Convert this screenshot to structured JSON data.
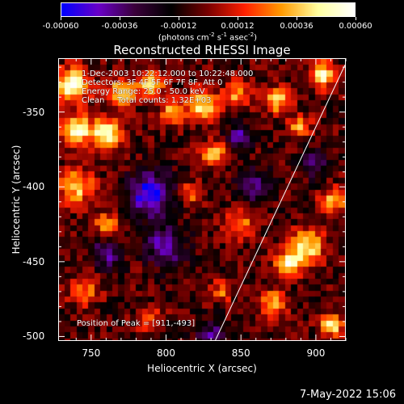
{
  "colorbar": {
    "ticks": [
      "-0.00060",
      "-0.00036",
      "-0.00012",
      "0.00012",
      "0.00036",
      "0.00060"
    ],
    "units_main": "(photons cm",
    "units_exp1": "-2",
    "units_mid1": " s",
    "units_exp2": "-1",
    "units_mid2": " asec",
    "units_exp3": "-2",
    "units_end": ")",
    "colors": [
      "#0000ff",
      "#6a00c8",
      "#3a003a",
      "#000000",
      "#7a0000",
      "#ff2000",
      "#ff9a00",
      "#ffffa0",
      "#ffffff"
    ]
  },
  "annotations": {
    "time": "1-Dec-2003 10:22:12.000 to 10:22:48.000",
    "detectors": "Detectors: 3F 4F 5F 6F 7F 8F, Att 0",
    "energy": "Energy Range: 25.0 - 50.0 keV",
    "clean": "Clean     Total counts: 1.32E+03",
    "peak": "Position of Peak = [911,-493]"
  },
  "timestamp": "7-May-2022 15:06",
  "chart_data": {
    "type": "heatmap",
    "title": "Reconstructed RHESSI Image",
    "xlabel": "Heliocentric X (arcsec)",
    "ylabel": "Heliocentric Y (arcsec)",
    "xlim": [
      728,
      920
    ],
    "ylim": [
      -503,
      -314
    ],
    "xticks": [
      "750",
      "800",
      "850",
      "900"
    ],
    "xtick_values": [
      750,
      800,
      850,
      900
    ],
    "yticks": [
      "-350",
      "-400",
      "-450",
      "-500"
    ],
    "ytick_values": [
      -350,
      -400,
      -450,
      -500
    ],
    "colorbar_range": [
      -0.0006,
      0.0006
    ],
    "grid_step_arcsec": 4,
    "blobs": [
      {
        "x": 737,
        "y": -332,
        "sigma": 8,
        "value": 0.0006
      },
      {
        "x": 740,
        "y": -362,
        "sigma": 7,
        "value": 0.00058
      },
      {
        "x": 760,
        "y": -364,
        "sigma": 7,
        "value": 0.0006
      },
      {
        "x": 770,
        "y": -337,
        "sigma": 7,
        "value": 0.00045
      },
      {
        "x": 790,
        "y": -330,
        "sigma": 6,
        "value": 0.0005
      },
      {
        "x": 805,
        "y": -350,
        "sigma": 6,
        "value": 0.0004
      },
      {
        "x": 825,
        "y": -345,
        "sigma": 7,
        "value": 0.0005
      },
      {
        "x": 848,
        "y": -338,
        "sigma": 6,
        "value": 0.00035
      },
      {
        "x": 875,
        "y": -342,
        "sigma": 6,
        "value": 0.00045
      },
      {
        "x": 905,
        "y": -325,
        "sigma": 6,
        "value": 0.00055
      },
      {
        "x": 890,
        "y": -360,
        "sigma": 5,
        "value": 0.0004
      },
      {
        "x": 832,
        "y": -378,
        "sigma": 6,
        "value": 0.0004
      },
      {
        "x": 740,
        "y": -400,
        "sigma": 8,
        "value": 0.00045
      },
      {
        "x": 760,
        "y": -426,
        "sigma": 6,
        "value": 0.00035
      },
      {
        "x": 816,
        "y": -405,
        "sigma": 5,
        "value": 0.0003
      },
      {
        "x": 850,
        "y": -425,
        "sigma": 7,
        "value": 0.00035
      },
      {
        "x": 912,
        "y": -410,
        "sigma": 6,
        "value": 0.0004
      },
      {
        "x": 895,
        "y": -440,
        "sigma": 8,
        "value": 0.0005
      },
      {
        "x": 882,
        "y": -452,
        "sigma": 6,
        "value": 0.0006
      },
      {
        "x": 872,
        "y": -478,
        "sigma": 6,
        "value": 0.0004
      },
      {
        "x": 911,
        "y": -493,
        "sigma": 5,
        "value": 0.0006
      },
      {
        "x": 745,
        "y": -470,
        "sigma": 7,
        "value": 0.0003
      },
      {
        "x": 790,
        "y": -490,
        "sigma": 6,
        "value": 0.00025
      },
      {
        "x": 838,
        "y": -470,
        "sigma": 5,
        "value": 0.0003
      },
      {
        "x": 790,
        "y": -405,
        "sigma": 10,
        "value": -0.00055
      },
      {
        "x": 800,
        "y": -440,
        "sigma": 9,
        "value": -0.0004
      },
      {
        "x": 860,
        "y": -400,
        "sigma": 8,
        "value": -0.0003
      },
      {
        "x": 760,
        "y": -445,
        "sigma": 7,
        "value": -0.00035
      },
      {
        "x": 850,
        "y": -365,
        "sigma": 6,
        "value": -0.00035
      },
      {
        "x": 830,
        "y": -500,
        "sigma": 7,
        "value": -0.0003
      },
      {
        "x": 900,
        "y": -385,
        "sigma": 6,
        "value": -0.0003
      }
    ],
    "limb_line": [
      [
        833,
        -503
      ],
      [
        920,
        -318
      ]
    ]
  }
}
